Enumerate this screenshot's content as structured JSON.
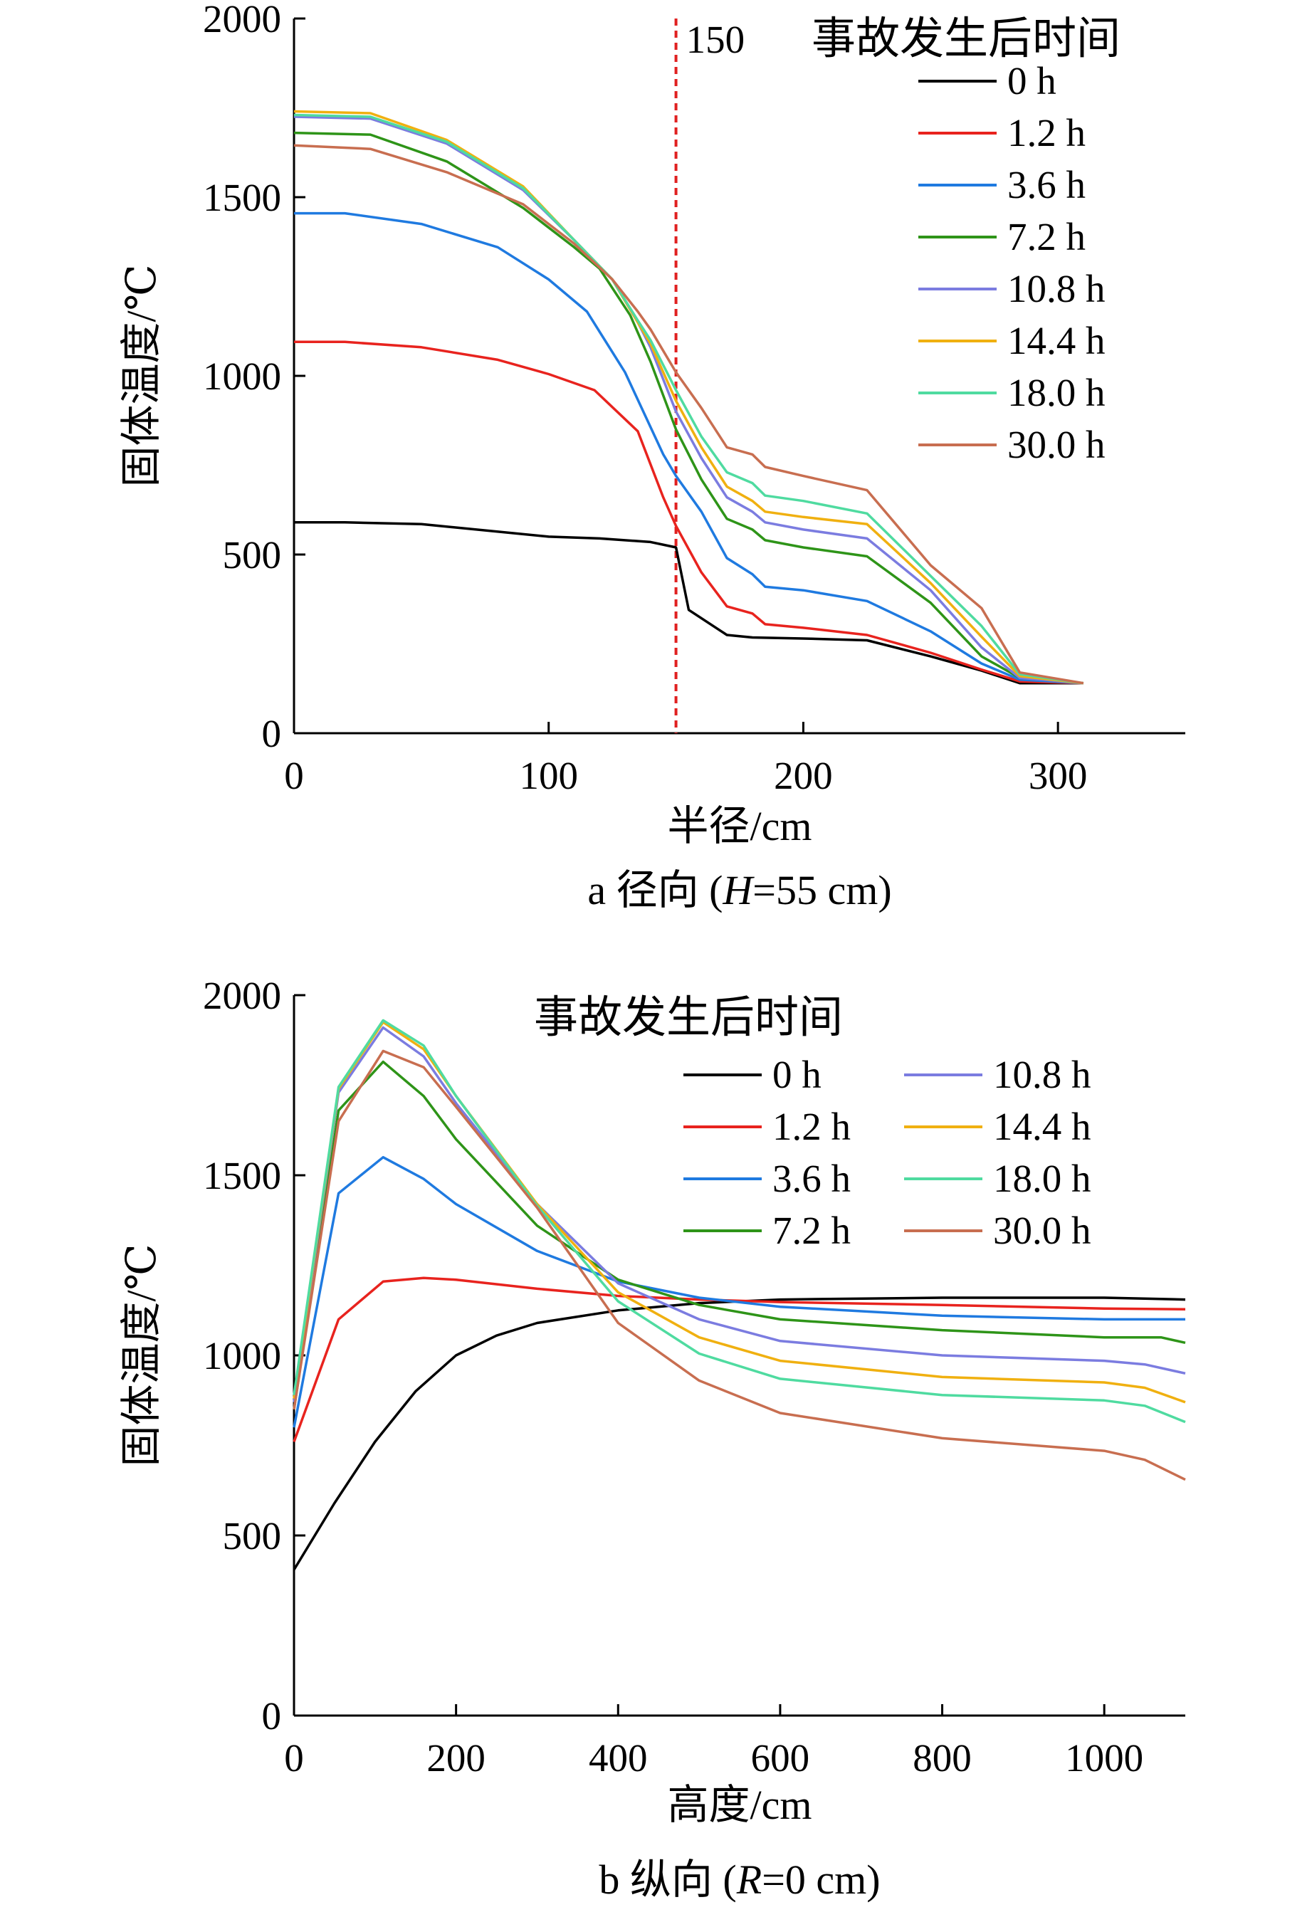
{
  "chart_data": [
    {
      "type": "line",
      "panel": "a",
      "caption_prefix": "a",
      "caption_main": "径向 (",
      "caption_var": "H",
      "caption_rest": "=55 cm)",
      "xlabel": "半径/cm",
      "ylabel": "固体温度/℃",
      "xlim": [
        0,
        350
      ],
      "ylim": [
        0,
        2000
      ],
      "xticks": [
        0,
        100,
        200,
        300
      ],
      "yticks": [
        0,
        500,
        1000,
        1500,
        2000
      ],
      "reference_line": {
        "x": 150,
        "label": "150",
        "color": "#e02020",
        "style": "dashed"
      },
      "legend": {
        "title": "事故发生后时间",
        "placement": "top-right",
        "columns": 1
      },
      "series": [
        {
          "name": "0 h",
          "color": "#000000",
          "points": [
            [
              0,
              590
            ],
            [
              20,
              590
            ],
            [
              50,
              585
            ],
            [
              100,
              550
            ],
            [
              120,
              545
            ],
            [
              140,
              535
            ],
            [
              150,
              520
            ],
            [
              155,
              345
            ],
            [
              170,
              275
            ],
            [
              180,
              268
            ],
            [
              200,
              265
            ],
            [
              225,
              260
            ],
            [
              250,
              215
            ],
            [
              270,
              175
            ],
            [
              285,
              140
            ],
            [
              310,
              140
            ]
          ]
        },
        {
          "name": "1.2 h",
          "color": "#e8231e",
          "points": [
            [
              0,
              1095
            ],
            [
              20,
              1095
            ],
            [
              50,
              1080
            ],
            [
              80,
              1045
            ],
            [
              100,
              1005
            ],
            [
              118,
              960
            ],
            [
              135,
              845
            ],
            [
              145,
              660
            ],
            [
              150,
              580
            ],
            [
              160,
              450
            ],
            [
              170,
              355
            ],
            [
              180,
              335
            ],
            [
              185,
              305
            ],
            [
              200,
              295
            ],
            [
              225,
              275
            ],
            [
              250,
              225
            ],
            [
              270,
              178
            ],
            [
              285,
              145
            ],
            [
              310,
              140
            ]
          ]
        },
        {
          "name": "3.6 h",
          "color": "#1f7ae0",
          "points": [
            [
              0,
              1455
            ],
            [
              20,
              1455
            ],
            [
              50,
              1425
            ],
            [
              80,
              1360
            ],
            [
              100,
              1270
            ],
            [
              115,
              1180
            ],
            [
              130,
              1010
            ],
            [
              145,
              780
            ],
            [
              150,
              720
            ],
            [
              160,
              620
            ],
            [
              170,
              490
            ],
            [
              180,
              445
            ],
            [
              185,
              410
            ],
            [
              200,
              400
            ],
            [
              225,
              370
            ],
            [
              250,
              285
            ],
            [
              270,
              195
            ],
            [
              285,
              150
            ],
            [
              310,
              140
            ]
          ]
        },
        {
          "name": "7.2 h",
          "color": "#2e9418",
          "points": [
            [
              0,
              1680
            ],
            [
              30,
              1675
            ],
            [
              60,
              1600
            ],
            [
              90,
              1470
            ],
            [
              110,
              1360
            ],
            [
              120,
              1300
            ],
            [
              132,
              1170
            ],
            [
              140,
              1040
            ],
            [
              150,
              850
            ],
            [
              160,
              710
            ],
            [
              170,
              600
            ],
            [
              180,
              570
            ],
            [
              185,
              540
            ],
            [
              200,
              520
            ],
            [
              225,
              495
            ],
            [
              250,
              365
            ],
            [
              270,
              215
            ],
            [
              285,
              155
            ],
            [
              310,
              140
            ]
          ]
        },
        {
          "name": "10.8 h",
          "color": "#7b7ce0",
          "points": [
            [
              0,
              1725
            ],
            [
              30,
              1720
            ],
            [
              60,
              1650
            ],
            [
              90,
              1520
            ],
            [
              110,
              1380
            ],
            [
              125,
              1270
            ],
            [
              135,
              1150
            ],
            [
              140,
              1080
            ],
            [
              150,
              900
            ],
            [
              160,
              770
            ],
            [
              170,
              660
            ],
            [
              180,
              620
            ],
            [
              185,
              590
            ],
            [
              200,
              570
            ],
            [
              225,
              545
            ],
            [
              250,
              400
            ],
            [
              270,
              240
            ],
            [
              285,
              155
            ],
            [
              310,
              140
            ]
          ]
        },
        {
          "name": "14.4 h",
          "color": "#f0b010",
          "points": [
            [
              0,
              1740
            ],
            [
              30,
              1735
            ],
            [
              60,
              1660
            ],
            [
              90,
              1530
            ],
            [
              110,
              1380
            ],
            [
              125,
              1270
            ],
            [
              135,
              1150
            ],
            [
              140,
              1090
            ],
            [
              150,
              930
            ],
            [
              160,
              800
            ],
            [
              170,
              690
            ],
            [
              180,
              650
            ],
            [
              185,
              620
            ],
            [
              200,
              605
            ],
            [
              225,
              585
            ],
            [
              250,
              420
            ],
            [
              270,
              270
            ],
            [
              285,
              160
            ],
            [
              310,
              140
            ]
          ]
        },
        {
          "name": "18.0 h",
          "color": "#4fdba0",
          "points": [
            [
              0,
              1730
            ],
            [
              30,
              1725
            ],
            [
              60,
              1655
            ],
            [
              90,
              1525
            ],
            [
              110,
              1380
            ],
            [
              125,
              1270
            ],
            [
              135,
              1155
            ],
            [
              140,
              1100
            ],
            [
              150,
              960
            ],
            [
              160,
              830
            ],
            [
              170,
              730
            ],
            [
              180,
              700
            ],
            [
              185,
              665
            ],
            [
              200,
              650
            ],
            [
              225,
              615
            ],
            [
              250,
              440
            ],
            [
              270,
              300
            ],
            [
              285,
              165
            ],
            [
              310,
              140
            ]
          ]
        },
        {
          "name": "30.0 h",
          "color": "#c86e50",
          "points": [
            [
              0,
              1645
            ],
            [
              30,
              1635
            ],
            [
              60,
              1570
            ],
            [
              90,
              1480
            ],
            [
              110,
              1370
            ],
            [
              125,
              1270
            ],
            [
              135,
              1180
            ],
            [
              140,
              1130
            ],
            [
              150,
              1010
            ],
            [
              160,
              910
            ],
            [
              170,
              800
            ],
            [
              180,
              780
            ],
            [
              185,
              745
            ],
            [
              200,
              720
            ],
            [
              225,
              680
            ],
            [
              250,
              470
            ],
            [
              270,
              350
            ],
            [
              285,
              170
            ],
            [
              310,
              140
            ]
          ]
        }
      ]
    },
    {
      "type": "line",
      "panel": "b",
      "caption_prefix": "b",
      "caption_main": "纵向 (",
      "caption_var": "R",
      "caption_rest": "=0 cm)",
      "xlabel": "高度/cm",
      "ylabel": "固体温度/℃",
      "xlim": [
        0,
        1100
      ],
      "ylim": [
        0,
        2000
      ],
      "xticks": [
        0,
        200,
        400,
        600,
        800,
        1000
      ],
      "yticks": [
        0,
        500,
        1000,
        1500,
        2000
      ],
      "legend": {
        "title": "事故发生后时间",
        "placement": "top-right",
        "columns": 2
      },
      "series": [
        {
          "name": "0 h",
          "color": "#000000",
          "points": [
            [
              0,
              405
            ],
            [
              50,
              590
            ],
            [
              100,
              760
            ],
            [
              150,
              900
            ],
            [
              200,
              1000
            ],
            [
              250,
              1055
            ],
            [
              300,
              1090
            ],
            [
              400,
              1125
            ],
            [
              500,
              1145
            ],
            [
              600,
              1155
            ],
            [
              800,
              1160
            ],
            [
              1000,
              1160
            ],
            [
              1100,
              1155
            ]
          ]
        },
        {
          "name": "1.2 h",
          "color": "#e8231e",
          "points": [
            [
              0,
              760
            ],
            [
              55,
              1100
            ],
            [
              110,
              1205
            ],
            [
              160,
              1215
            ],
            [
              200,
              1210
            ],
            [
              300,
              1185
            ],
            [
              400,
              1165
            ],
            [
              500,
              1155
            ],
            [
              600,
              1148
            ],
            [
              800,
              1140
            ],
            [
              1000,
              1130
            ],
            [
              1100,
              1128
            ]
          ]
        },
        {
          "name": "3.6 h",
          "color": "#1f7ae0",
          "points": [
            [
              0,
              800
            ],
            [
              55,
              1450
            ],
            [
              110,
              1550
            ],
            [
              160,
              1490
            ],
            [
              200,
              1420
            ],
            [
              300,
              1290
            ],
            [
              400,
              1205
            ],
            [
              500,
              1160
            ],
            [
              600,
              1135
            ],
            [
              800,
              1110
            ],
            [
              1000,
              1100
            ],
            [
              1100,
              1100
            ]
          ]
        },
        {
          "name": "7.2 h",
          "color": "#2e9418",
          "points": [
            [
              0,
              850
            ],
            [
              55,
              1680
            ],
            [
              110,
              1815
            ],
            [
              160,
              1720
            ],
            [
              200,
              1600
            ],
            [
              300,
              1360
            ],
            [
              400,
              1210
            ],
            [
              500,
              1140
            ],
            [
              600,
              1100
            ],
            [
              800,
              1070
            ],
            [
              1000,
              1050
            ],
            [
              1070,
              1050
            ],
            [
              1100,
              1035
            ]
          ]
        },
        {
          "name": "10.8 h",
          "color": "#7b7ce0",
          "points": [
            [
              0,
              870
            ],
            [
              55,
              1730
            ],
            [
              110,
              1910
            ],
            [
              160,
              1830
            ],
            [
              200,
              1700
            ],
            [
              300,
              1420
            ],
            [
              400,
              1200
            ],
            [
              500,
              1100
            ],
            [
              600,
              1040
            ],
            [
              800,
              1000
            ],
            [
              1000,
              985
            ],
            [
              1050,
              975
            ],
            [
              1100,
              950
            ]
          ]
        },
        {
          "name": "14.4 h",
          "color": "#f0b010",
          "points": [
            [
              0,
              880
            ],
            [
              55,
              1740
            ],
            [
              110,
              1925
            ],
            [
              160,
              1850
            ],
            [
              200,
              1720
            ],
            [
              300,
              1420
            ],
            [
              400,
              1175
            ],
            [
              500,
              1050
            ],
            [
              600,
              985
            ],
            [
              800,
              940
            ],
            [
              1000,
              925
            ],
            [
              1050,
              910
            ],
            [
              1100,
              870
            ]
          ]
        },
        {
          "name": "18.0 h",
          "color": "#4fdba0",
          "points": [
            [
              0,
              890
            ],
            [
              55,
              1745
            ],
            [
              110,
              1930
            ],
            [
              160,
              1860
            ],
            [
              200,
              1720
            ],
            [
              300,
              1415
            ],
            [
              400,
              1150
            ],
            [
              500,
              1005
            ],
            [
              600,
              935
            ],
            [
              800,
              890
            ],
            [
              1000,
              875
            ],
            [
              1050,
              860
            ],
            [
              1100,
              815
            ]
          ]
        },
        {
          "name": "30.0 h",
          "color": "#c86e50",
          "points": [
            [
              0,
              850
            ],
            [
              55,
              1650
            ],
            [
              110,
              1845
            ],
            [
              160,
              1800
            ],
            [
              200,
              1690
            ],
            [
              300,
              1410
            ],
            [
              400,
              1090
            ],
            [
              500,
              930
            ],
            [
              600,
              840
            ],
            [
              800,
              770
            ],
            [
              1000,
              735
            ],
            [
              1050,
              710
            ],
            [
              1100,
              655
            ]
          ]
        }
      ]
    }
  ]
}
